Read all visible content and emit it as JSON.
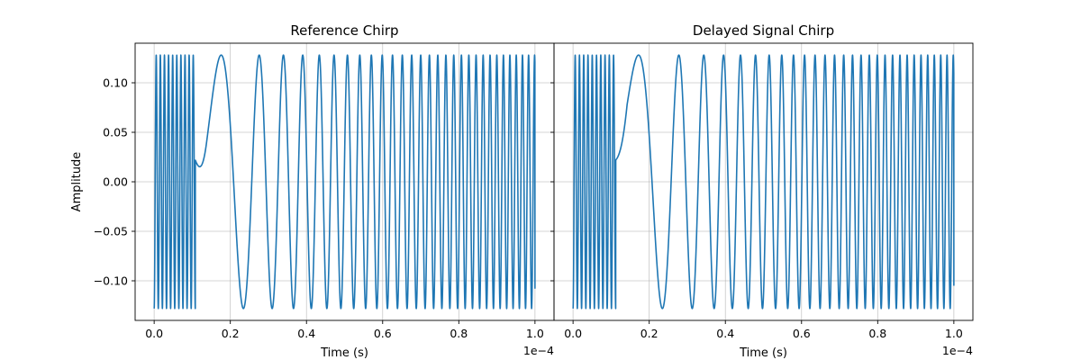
{
  "chart_data": [
    {
      "type": "line",
      "title": "Reference Chirp",
      "xlabel": "Time (s)",
      "ylabel": "Amplitude",
      "x_offset_label": "1e−4",
      "xlim": [
        -0.05,
        1.05
      ],
      "ylim": [
        -0.14,
        0.14
      ],
      "xticks": [
        0.0,
        0.2,
        0.4,
        0.6,
        0.8,
        1.0
      ],
      "xtick_labels": [
        "0.0",
        "0.2",
        "0.4",
        "0.6",
        "0.8",
        "1.0"
      ],
      "yticks": [
        -0.1,
        -0.05,
        0.0,
        0.05,
        0.1
      ],
      "ytick_labels": [
        "−0.10",
        "−0.05",
        "0.00",
        "0.05",
        "0.10"
      ],
      "grid": true,
      "color": "#1f77b4",
      "series": [
        {
          "segments": [
            {
              "kind": "fast_start",
              "x0": 0.0,
              "x1": 0.108,
              "cycles": 10
            },
            {
              "kind": "chirp",
              "x0": 0.108,
              "x1": 1.0,
              "f0": 1.8,
              "f1": 64,
              "peak_at": 0.176
            }
          ],
          "amplitude": 0.128,
          "end_value": -0.108
        }
      ]
    },
    {
      "type": "line",
      "title": "Delayed Signal Chirp",
      "xlabel": "Time (s)",
      "ylabel": "",
      "x_offset_label": "1e−4",
      "xlim": [
        -0.05,
        1.05
      ],
      "ylim": [
        -0.14,
        0.14
      ],
      "xticks": [
        0.0,
        0.2,
        0.4,
        0.6,
        0.8,
        1.0
      ],
      "xtick_labels": [
        "0.0",
        "0.2",
        "0.4",
        "0.6",
        "0.8",
        "1.0"
      ],
      "yticks": [
        -0.1,
        -0.05,
        0.0,
        0.05,
        0.1
      ],
      "ytick_labels": [],
      "grid": true,
      "color": "#1f77b4",
      "series": [
        {
          "segments": [
            {
              "kind": "fast_start",
              "x0": 0.0,
              "x1": 0.112,
              "cycles": 10
            },
            {
              "kind": "chirp",
              "x0": 0.112,
              "x1": 1.0,
              "f0": 1.8,
              "f1": 62,
              "peak_at": 0.172
            }
          ],
          "amplitude": 0.128,
          "end_value": -0.105
        }
      ]
    }
  ]
}
